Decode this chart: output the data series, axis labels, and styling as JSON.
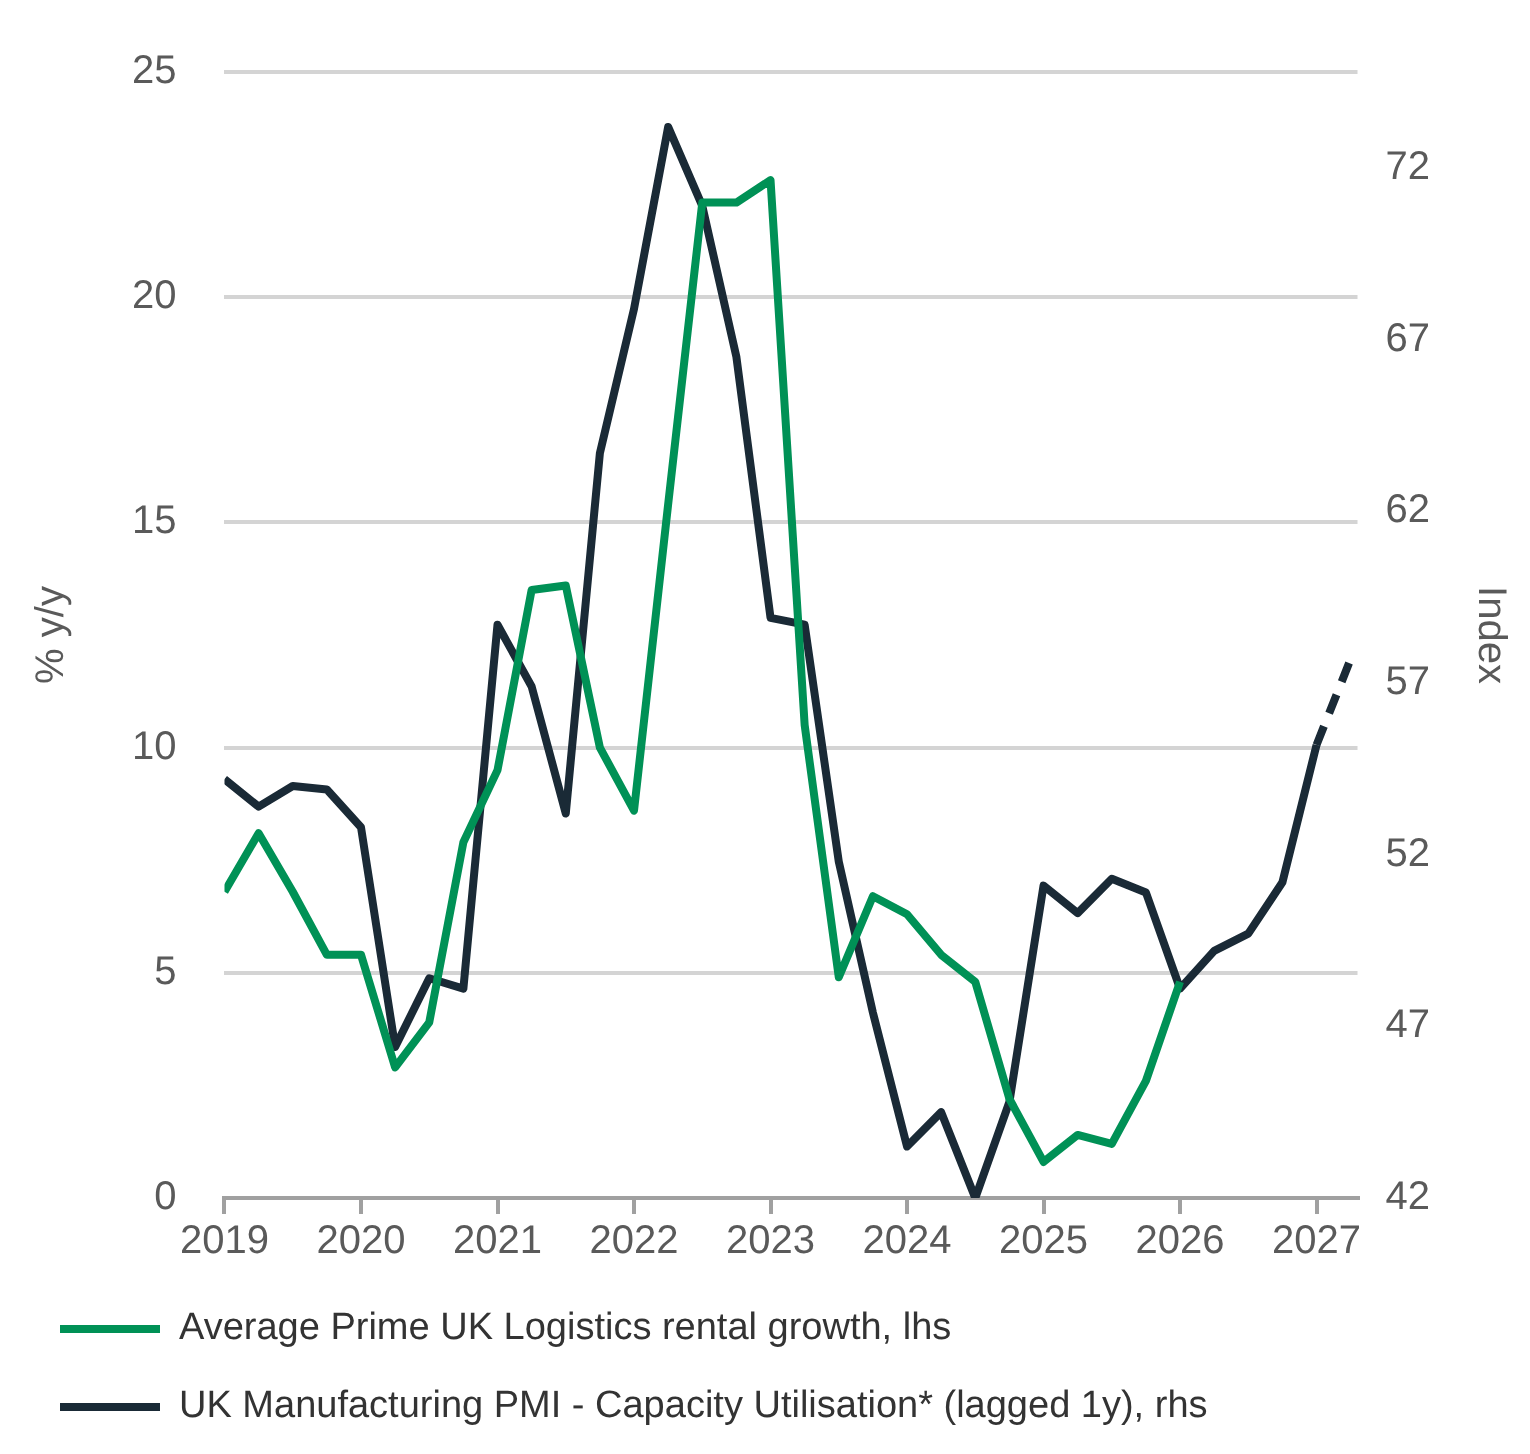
{
  "chart_data": {
    "type": "line",
    "ylabel": "% y/y",
    "y2label": "Index",
    "xlim": [
      2019,
      2027.3
    ],
    "xticks": [
      2019,
      2020,
      2021,
      2022,
      2023,
      2024,
      2025,
      2026,
      2027
    ],
    "ylim": [
      0,
      25
    ],
    "yticks": [
      0,
      5,
      10,
      15,
      20,
      25
    ],
    "y2lim": [
      42,
      74.8
    ],
    "y2ticks": [
      42,
      47,
      52,
      57,
      62,
      67,
      72
    ],
    "grid": "y",
    "legend": "bottom",
    "marker": "none",
    "series": [
      {
        "name": "Average Prime UK Logistics rental growth, lhs",
        "color": "#009156",
        "x": [
          2019,
          2019.25,
          2019.5,
          2019.75,
          2020,
          2020.25,
          2020.5,
          2020.75,
          2021,
          2021.25,
          2021.5,
          2021.75,
          2022,
          2022.25,
          2022.5,
          2022.75,
          2023,
          2023.25,
          2023.5,
          2023.75,
          2024,
          2024.25,
          2024.5,
          2024.75,
          2025,
          2025.25,
          2025.5,
          2025.75,
          2026
        ],
        "values": [
          6.8,
          8.1,
          6.8,
          5.4,
          5.4,
          2.9,
          3.9,
          7.9,
          9.5,
          13.5,
          13.6,
          10.0,
          8.6,
          15.4,
          22.1,
          22.1,
          22.6,
          10.5,
          4.9,
          6.7,
          6.3,
          5.4,
          4.8,
          2.2,
          0.8,
          1.4,
          1.2,
          2.6,
          4.8
        ]
      },
      {
        "name": "UK Manufacturing PMI - Capacity Utilisation* (lagged 1y), rhs",
        "color": "#1a2a36",
        "axis": "y2",
        "x": [
          2019,
          2019.25,
          2019.5,
          2019.75,
          2020,
          2020.25,
          2020.5,
          2020.75,
          2021,
          2021.25,
          2021.5,
          2021.75,
          2022,
          2022.25,
          2022.5,
          2022.75,
          2023,
          2023.25,
          2023.5,
          2023.75,
          2024,
          2024.25,
          2024.5,
          2024.75,
          2025,
          2025.25,
          2025.5,
          2025.75,
          2026,
          2026.25,
          2026.5,
          2026.75,
          2027
        ],
        "values": [
          54.2,
          53.4,
          54.0,
          53.9,
          52.8,
          46.4,
          48.4,
          48.1,
          58.7,
          56.9,
          53.2,
          63.7,
          67.9,
          73.2,
          70.9,
          66.5,
          58.9,
          58.7,
          51.8,
          47.4,
          43.5,
          44.5,
          42.0,
          44.8,
          51.1,
          50.3,
          51.3,
          50.9,
          48.1,
          49.2,
          49.7,
          51.2,
          55.2
        ]
      },
      {
        "color": "#1a2a36",
        "axis": "y2",
        "line_style": "dashed",
        "x": [
          2027,
          2027.25
        ],
        "values": [
          55.2,
          57.7
        ]
      }
    ]
  }
}
